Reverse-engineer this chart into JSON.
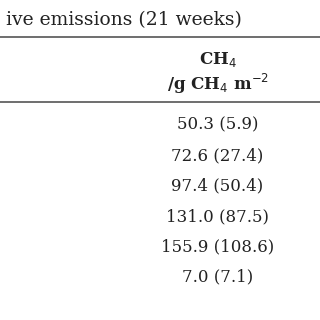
{
  "title_partial": "ive emissions (21 weeks)",
  "col_header_line1": "CH$_4$",
  "col_header_line2": "/g CH$_4$ m$^{-2}$",
  "rows": [
    "50.3 (5.9)",
    "72.6 (27.4)",
    "97.4 (50.4)",
    "131.0 (87.5)",
    "155.9 (108.6)",
    "7.0 (7.1)"
  ],
  "bg_color": "#ffffff",
  "text_color": "#222222",
  "title_fontsize": 13.5,
  "header_fontsize": 12,
  "data_fontsize": 12,
  "line_color": "#555555"
}
